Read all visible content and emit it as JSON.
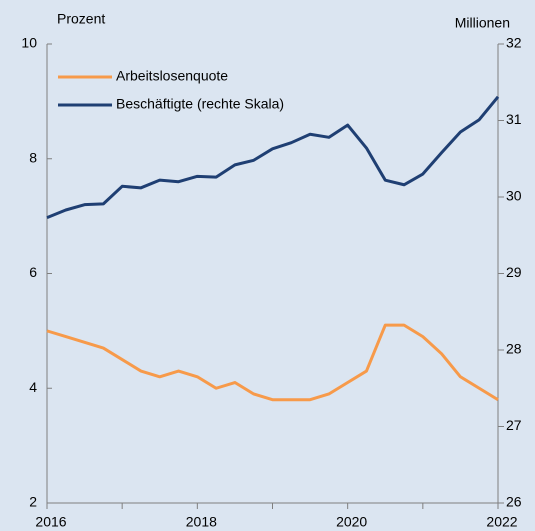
{
  "chart_data": {
    "type": "line",
    "ylabel": "Prozent",
    "y2label": "Millionen",
    "x": [
      2016,
      2016.25,
      2016.5,
      2016.75,
      2017,
      2017.25,
      2017.5,
      2017.75,
      2018,
      2018.25,
      2018.5,
      2018.75,
      2019,
      2019.25,
      2019.5,
      2019.75,
      2020,
      2020.25,
      2020.5,
      2020.75,
      2021,
      2021.25,
      2021.5,
      2021.75,
      2022
    ],
    "series": [
      {
        "name": "Arbeitslosenquote",
        "color": "#f79a4a",
        "values": [
          5.0,
          4.9,
          4.8,
          4.7,
          4.5,
          4.3,
          4.2,
          4.3,
          4.2,
          4.0,
          4.1,
          3.9,
          3.8,
          3.8,
          3.8,
          3.9,
          4.1,
          4.3,
          5.1,
          5.1,
          4.9,
          4.6,
          4.2,
          4.0,
          3.8
        ]
      },
      {
        "name": "Beschäftigte (rechte Skala)",
        "color": "#1f3f73",
        "axis": "y2",
        "values": [
          29.73,
          29.83,
          29.9,
          29.91,
          30.14,
          30.12,
          30.22,
          30.2,
          30.27,
          30.26,
          30.42,
          30.48,
          30.63,
          30.71,
          30.82,
          30.78,
          30.94,
          30.64,
          30.22,
          30.16,
          30.3,
          30.58,
          30.85,
          31.01,
          31.31
        ]
      }
    ],
    "xlim": [
      2016,
      2022
    ],
    "xticks": [
      2016,
      2018,
      2020,
      2022
    ],
    "xminorticks": [
      2017,
      2019,
      2021
    ],
    "ylim": [
      2,
      10
    ],
    "yticks": [
      2,
      4,
      6,
      8,
      10
    ],
    "y2lim": [
      26,
      32
    ],
    "y2ticks": [
      26,
      27,
      28,
      29,
      30,
      31,
      32
    ],
    "grid": false,
    "legend": "upper left"
  }
}
